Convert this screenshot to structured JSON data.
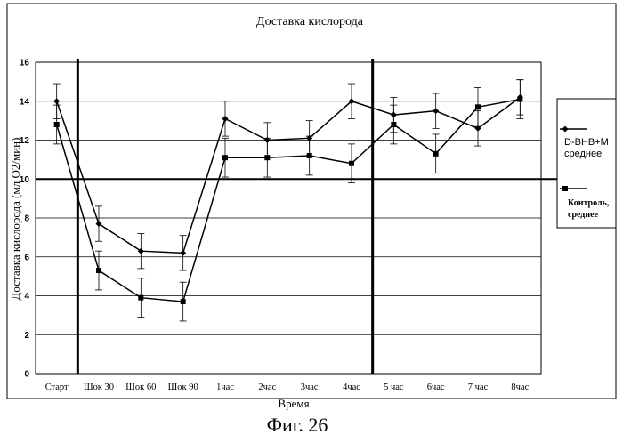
{
  "figure_caption": "Фиг. 26",
  "chart_data": {
    "type": "line",
    "title": "Доставка кислорода",
    "xlabel": "Время",
    "ylabel": "Доставка кислорода (мл O2/мин)",
    "categories": [
      "Старт",
      "Шок 30",
      "Шок 60",
      "Шок 90",
      "1час",
      "2час",
      "3час",
      "4час",
      "5 час",
      "6час",
      "7 час",
      "8час"
    ],
    "ylim": [
      0,
      16
    ],
    "yticks": [
      0,
      2,
      4,
      6,
      8,
      10,
      12,
      14,
      16
    ],
    "grid": true,
    "legend_position": "right",
    "reference_lines": {
      "vertical_after_categories": [
        "Старт",
        "4час"
      ],
      "horizontal_y": 10
    },
    "series": [
      {
        "name": "D-BHB+M среднее",
        "marker": "diamond",
        "values": [
          14.0,
          7.7,
          6.3,
          6.2,
          13.1,
          12.0,
          12.1,
          14.0,
          13.3,
          13.5,
          12.6,
          14.2
        ],
        "error": [
          0.9,
          0.9,
          0.9,
          0.9,
          0.9,
          0.9,
          0.9,
          0.9,
          0.9,
          0.9,
          0.9,
          0.9
        ]
      },
      {
        "name": "Контроль, среднее",
        "marker": "square",
        "values": [
          12.8,
          5.3,
          3.9,
          3.7,
          11.1,
          11.1,
          11.2,
          10.8,
          12.8,
          11.3,
          13.7,
          14.1
        ],
        "error": [
          1.0,
          1.0,
          1.0,
          1.0,
          1.0,
          1.0,
          1.0,
          1.0,
          1.0,
          1.0,
          1.0,
          1.0
        ]
      }
    ]
  }
}
